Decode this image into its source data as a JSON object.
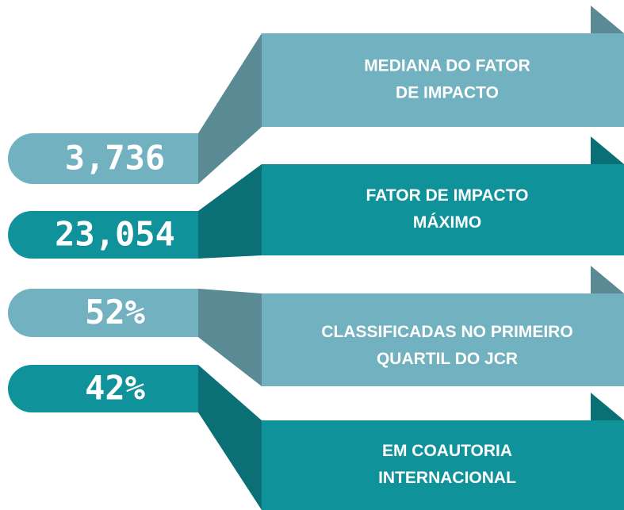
{
  "items": [
    {
      "value": "3,736",
      "label": [
        "MEDIANA DO FATOR",
        "DE  IMPACTO"
      ]
    },
    {
      "value": "23,054",
      "label": [
        "FATOR DE  IMPACTO",
        "MÁXIMO"
      ]
    },
    {
      "value": "52%",
      "label": [
        "CLASSIFICADAS NO PRIMEIRO",
        "QUARTIL DO JCR"
      ]
    },
    {
      "value": "42%",
      "label": [
        "EM COAUTORIA",
        "INTERNACIONAL"
      ]
    }
  ]
}
